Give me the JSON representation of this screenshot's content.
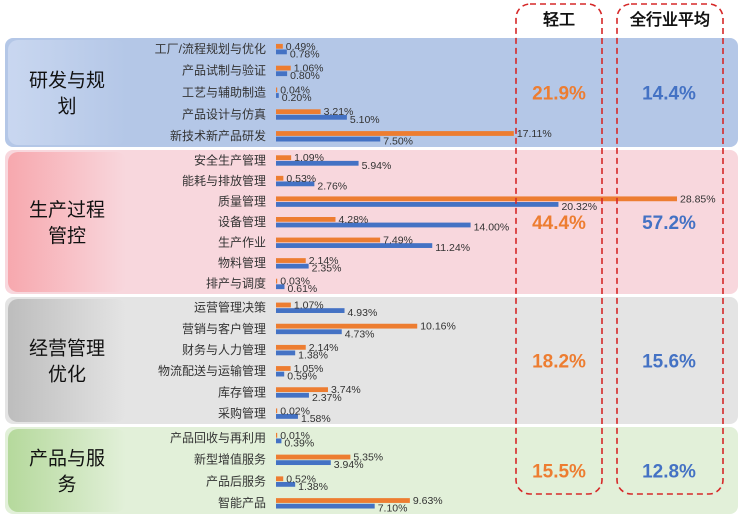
{
  "headers": {
    "light_industry": "轻工",
    "all_industry": "全行业平均"
  },
  "colors": {
    "light_bar": "#ED7D31",
    "all_bar": "#4472C4",
    "light_pct": "#ED7D31",
    "all_pct": "#4472C4",
    "highlight_box": "#D62828"
  },
  "chart_data": {
    "type": "bar",
    "orientation": "horizontal",
    "series": [
      {
        "key": "light",
        "name": "轻工"
      },
      {
        "key": "all",
        "name": "全行业平均"
      }
    ],
    "groups": [
      {
        "title": "研发与规划",
        "title_lines": [
          "研发与规",
          "划"
        ],
        "light_share": "21.9%",
        "all_share": "14.4%",
        "fill": "#B4C7E7",
        "label_fill": "#C9D7F0",
        "items": [
          {
            "name": "工厂/流程规划与优化",
            "light": 0.49,
            "all": 0.78,
            "light_label": "0.49%",
            "all_label": "0.78%"
          },
          {
            "name": "产品试制与验证",
            "light": 1.06,
            "all": 0.8,
            "light_label": "1.06%",
            "all_label": "0.80%"
          },
          {
            "name": "工艺与辅助制造",
            "light": 0.04,
            "all": 0.2,
            "light_label": "0.04%",
            "all_label": "0.20%"
          },
          {
            "name": "产品设计与仿真",
            "light": 3.21,
            "all": 5.1,
            "light_label": "3.21%",
            "all_label": "5.10%"
          },
          {
            "name": "新技术新产品研发",
            "light": 17.11,
            "all": 7.5,
            "light_label": "17.11%",
            "all_label": "7.50%"
          }
        ]
      },
      {
        "title": "生产过程管控",
        "title_lines": [
          "生产过程",
          "管控"
        ],
        "light_share": "44.4%",
        "all_share": "57.2%",
        "fill": "#F8D7DD",
        "label_fill": "#F7A8AE",
        "items": [
          {
            "name": "安全生产管理",
            "light": 1.09,
            "all": 5.94,
            "light_label": "1.09%",
            "all_label": "5.94%"
          },
          {
            "name": "能耗与排放管理",
            "light": 0.53,
            "all": 2.76,
            "light_label": "0.53%",
            "all_label": "2.76%"
          },
          {
            "name": "质量管理",
            "light": 28.85,
            "all": 20.32,
            "light_label": "28.85%",
            "all_label": "20.32%"
          },
          {
            "name": "设备管理",
            "light": 4.28,
            "all": 14.0,
            "light_label": "4.28%",
            "all_label": "14.00%"
          },
          {
            "name": "生产作业",
            "light": 7.49,
            "all": 11.24,
            "light_label": "7.49%",
            "all_label": "11.24%"
          },
          {
            "name": "物料管理",
            "light": 2.14,
            "all": 2.35,
            "light_label": "2.14%",
            "all_label": "2.35%"
          },
          {
            "name": "排产与调度",
            "light": 0.03,
            "all": 0.61,
            "light_label": "0.03%",
            "all_label": "0.61%"
          }
        ]
      },
      {
        "title": "经营管理优化",
        "title_lines": [
          "经营管理",
          "优化"
        ],
        "light_share": "18.2%",
        "all_share": "15.6%",
        "fill": "#E4E4E4",
        "label_fill": "#BDBDBD",
        "items": [
          {
            "name": "运营管理决策",
            "light": 1.07,
            "all": 4.93,
            "light_label": "1.07%",
            "all_label": "4.93%"
          },
          {
            "name": "营销与客户管理",
            "light": 10.16,
            "all": 4.73,
            "light_label": "10.16%",
            "all_label": "4.73%"
          },
          {
            "name": "财务与人力管理",
            "light": 2.14,
            "all": 1.38,
            "light_label": "2.14%",
            "all_label": "1.38%"
          },
          {
            "name": "物流配送与运输管理",
            "light": 1.05,
            "all": 0.59,
            "light_label": "1.05%",
            "all_label": "0.59%"
          },
          {
            "name": "库存管理",
            "light": 3.74,
            "all": 2.37,
            "light_label": "3.74%",
            "all_label": "2.37%"
          },
          {
            "name": "采购管理",
            "light": 0.02,
            "all": 1.58,
            "light_label": "0.02%",
            "all_label": "1.58%"
          }
        ]
      },
      {
        "title": "产品与服务",
        "title_lines": [
          "产品与服",
          "务"
        ],
        "light_share": "15.5%",
        "all_share": "12.8%",
        "fill": "#E2F0D9",
        "label_fill": "#B5D99C",
        "items": [
          {
            "name": "产品回收与再利用",
            "light": 0.01,
            "all": 0.39,
            "light_label": "0.01%",
            "all_label": "0.39%"
          },
          {
            "name": "新型增值服务",
            "light": 5.35,
            "all": 3.94,
            "light_label": "5.35%",
            "all_label": "3.94%"
          },
          {
            "name": "产品后服务",
            "light": 0.52,
            "all": 1.38,
            "light_label": "0.52%",
            "all_label": "1.38%"
          },
          {
            "name": "智能产品",
            "light": 9.63,
            "all": 7.1,
            "light_label": "9.63%",
            "all_label": "7.10%"
          }
        ]
      }
    ]
  }
}
